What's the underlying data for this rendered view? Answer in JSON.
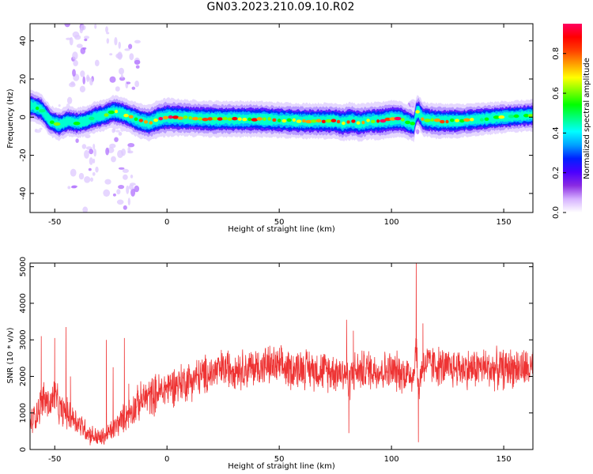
{
  "figure_title": "GN03.2023.210.09.10.R02",
  "chart_data": [
    {
      "type": "heatmap",
      "xlabel": "Height of straight line (km)",
      "ylabel": "Frequency (Hz)",
      "xlim": [
        -61,
        163
      ],
      "ylim": [
        -50,
        49
      ],
      "xticks": [
        -50,
        0,
        50,
        100,
        150
      ],
      "yticks": [
        -40,
        -20,
        0,
        20,
        40
      ],
      "colorbar": {
        "label": "Normalized spectral amplitude",
        "range": [
          0.0,
          0.95
        ],
        "ticks": [
          0.0,
          0.2,
          0.4,
          0.6,
          0.8
        ],
        "tick_labels": [
          "0.0",
          "0.2",
          "0.4",
          "0.6",
          "0.8"
        ],
        "colormap": [
          "#ffffff",
          "#d6b2ff",
          "#8a2be2",
          "#4b00ff",
          "#0020ff",
          "#00a0ff",
          "#00ffff",
          "#00ff80",
          "#00ff00",
          "#80ff00",
          "#ffff00",
          "#ffa000",
          "#ff4000",
          "#ff0000",
          "#ff0060"
        ]
      },
      "ridge_frequency": {
        "x": [
          -60,
          -56,
          -52,
          -48,
          -44,
          -40,
          -36,
          -32,
          -28,
          -24,
          -20,
          -16,
          -12,
          -8,
          -4,
          0,
          20,
          40,
          60,
          70,
          75,
          78,
          82,
          86,
          90,
          95,
          100,
          104,
          108,
          110,
          111,
          112,
          114,
          120,
          130,
          140,
          150,
          163
        ],
        "f": [
          6,
          4,
          -2,
          -4,
          -2,
          -3,
          -2,
          0,
          1,
          3,
          2,
          0,
          -2,
          -3,
          -1,
          0,
          -1,
          -1,
          -2,
          -2,
          -2,
          -3,
          -2,
          -3,
          -2,
          -2,
          -1,
          -1,
          -3,
          -4,
          2,
          3,
          -1,
          -2,
          -2,
          -1,
          0,
          1
        ]
      },
      "ridge_amplitude": {
        "x": [
          -60,
          -50,
          -40,
          -30,
          -20,
          -10,
          0,
          10,
          30,
          50,
          70,
          80,
          90,
          100,
          110,
          120,
          140,
          163
        ],
        "a": [
          0.5,
          0.5,
          0.45,
          0.5,
          0.55,
          0.7,
          0.85,
          0.75,
          0.75,
          0.7,
          0.72,
          0.8,
          0.75,
          0.85,
          0.6,
          0.7,
          0.55,
          0.5
        ]
      },
      "spur_heights_km": [
        -38,
        -20,
        108,
        111
      ]
    },
    {
      "type": "line",
      "xlabel": "Height of straight line (km)",
      "ylabel": "SNR (10 * v/v)",
      "xlim": [
        -61,
        163
      ],
      "ylim": [
        0,
        5100
      ],
      "xticks": [
        -50,
        0,
        50,
        100,
        150
      ],
      "yticks": [
        0,
        1000,
        2000,
        3000,
        4000,
        5000
      ],
      "series": [
        {
          "color": "#ee3333",
          "x": [
            -61,
            -58,
            -55,
            -52,
            -50,
            -48,
            -45,
            -42,
            -40,
            -37,
            -35,
            -32,
            -30,
            -28,
            -26,
            -24,
            -22,
            -20,
            -18,
            -16,
            -14,
            -12,
            -10,
            -8,
            -6,
            -4,
            -2,
            0,
            5,
            10,
            15,
            20,
            25,
            30,
            35,
            40,
            45,
            50,
            55,
            60,
            65,
            70,
            75,
            80,
            81,
            82,
            85,
            90,
            95,
            100,
            105,
            110,
            111,
            112,
            113,
            114,
            115,
            120,
            125,
            130,
            135,
            140,
            145,
            150,
            155,
            160,
            163
          ],
          "y": [
            700,
            1000,
            1400,
            1200,
            1500,
            1100,
            1000,
            900,
            750,
            600,
            450,
            350,
            300,
            350,
            450,
            550,
            700,
            800,
            950,
            1050,
            1200,
            1300,
            1400,
            1450,
            1500,
            1550,
            1600,
            1700,
            1800,
            1900,
            2000,
            2100,
            2200,
            2250,
            2200,
            2250,
            2300,
            2250,
            2200,
            2250,
            2200,
            2150,
            2150,
            2100,
            1700,
            2100,
            2150,
            2200,
            2150,
            2150,
            2100,
            2050,
            3000,
            1500,
            2100,
            2300,
            2350,
            2300,
            2200,
            2250,
            2200,
            2250,
            2200,
            2200,
            2250,
            2200,
            2200
          ],
          "noise_band": 650,
          "spikes": [
            {
              "x": -56,
              "y": 3100
            },
            {
              "x": -54,
              "y": 1450
            },
            {
              "x": -50,
              "y": 3050
            },
            {
              "x": -45,
              "y": 3350
            },
            {
              "x": -43,
              "y": 2000
            },
            {
              "x": -27,
              "y": 3000
            },
            {
              "x": -24,
              "y": 2250
            },
            {
              "x": -19,
              "y": 3050
            },
            {
              "x": -17,
              "y": 1800
            },
            {
              "x": 80,
              "y": 3550
            },
            {
              "x": 81,
              "y": 450
            },
            {
              "x": 83,
              "y": 3250
            },
            {
              "x": 110,
              "y": 2200
            },
            {
              "x": 111,
              "y": 5150
            },
            {
              "x": 112,
              "y": 200
            },
            {
              "x": 114,
              "y": 3450
            }
          ]
        }
      ]
    }
  ]
}
